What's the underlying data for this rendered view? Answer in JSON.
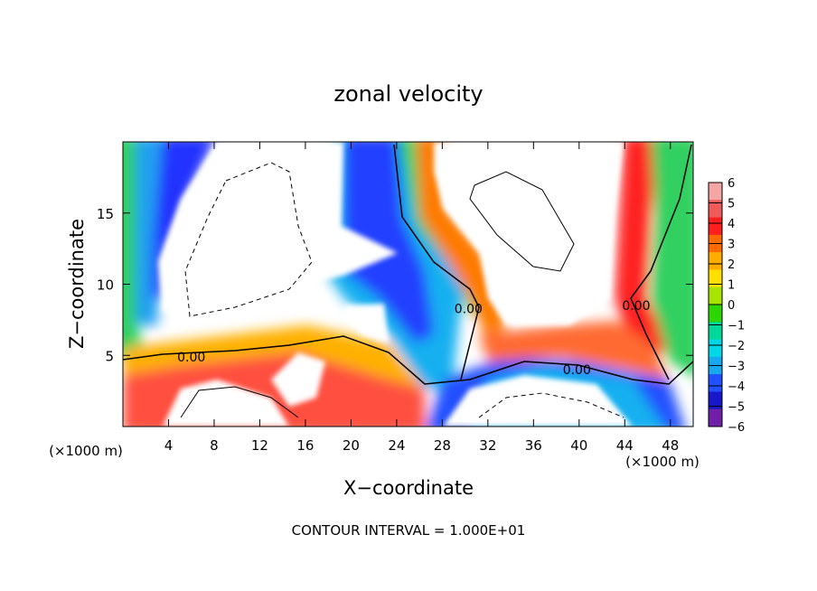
{
  "chart_data": {
    "type": "heatmap",
    "title": "zonal velocity",
    "xlabel": "X−coordinate",
    "ylabel": "Z−coordinate",
    "x_unit_left": "(×1000 m)",
    "x_unit_right": "(×1000 m)",
    "footer": "CONTOUR INTERVAL = 1.000E+01",
    "xlim": [
      0,
      50
    ],
    "ylim": [
      0,
      20
    ],
    "x_ticks": [
      4,
      8,
      12,
      16,
      20,
      24,
      28,
      32,
      36,
      40,
      44,
      48
    ],
    "x_tick_labels": [
      "4",
      "8",
      "12",
      "16",
      "20",
      "24",
      "28",
      "32",
      "36",
      "40",
      "44",
      "48"
    ],
    "y_ticks": [
      5,
      10,
      15
    ],
    "y_tick_labels": [
      "5",
      "10",
      "15"
    ],
    "colorbar": {
      "levels": [
        "6",
        "5",
        "4",
        "3",
        "2",
        "1",
        "0",
        "−1",
        "−2",
        "−3",
        "−4",
        "−5",
        "−6"
      ],
      "colors": [
        "#f4a5a5",
        "#ef5a5a",
        "#ff1e1e",
        "#ff6a00",
        "#ffae00",
        "#ffe000",
        "#a8e400",
        "#2ed600",
        "#00d89a",
        "#00d8e8",
        "#18a8f0",
        "#2050ff",
        "#1818c8",
        "#7020a8"
      ]
    },
    "contour_labels": [
      {
        "text": "0.00",
        "x": 6,
        "z": 4.9
      },
      {
        "text": "0.00",
        "x": 30.3,
        "z": 8.3
      },
      {
        "text": "0.00",
        "x": 39.8,
        "z": 4.0
      },
      {
        "text": "0.00",
        "x": 45.0,
        "z": 8.5
      }
    ]
  }
}
